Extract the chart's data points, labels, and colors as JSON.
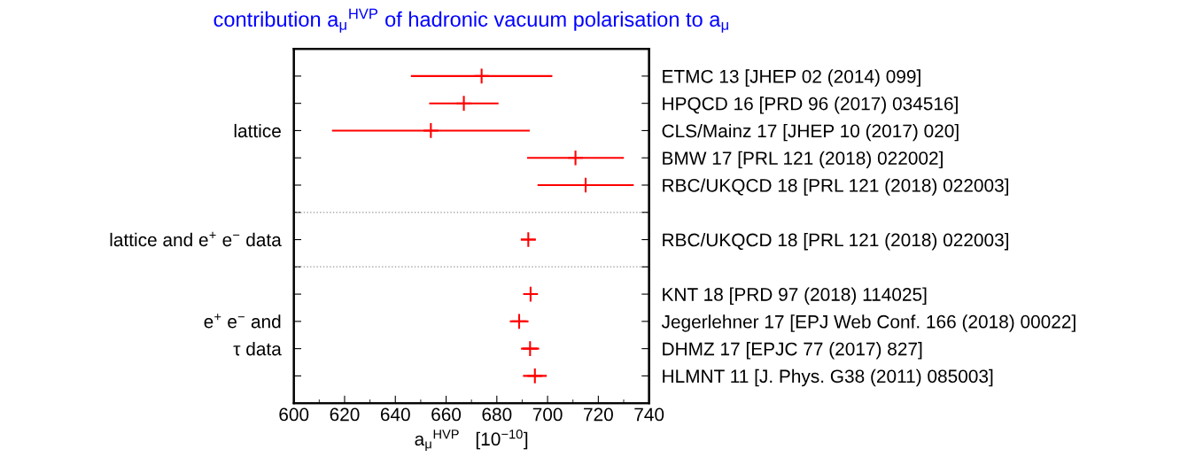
{
  "chart_data": {
    "type": "scatter",
    "orientation": "horizontal",
    "title": "contribution a$_{μ}$$^{HVP}$ of hadronic vacuum polarisation to a$_{μ}$",
    "xlabel": "a$_{μ}$$^{HVP}$   [10$^{−10}$]",
    "categories": [
      null,
      null,
      "lattice",
      null,
      null,
      null,
      "lattice and e$^{+}$ e$^{−}$ data",
      null,
      null,
      "e$^{+}$ e$^{−}$ and",
      "τ data",
      null
    ],
    "y2_categories": [
      "ETMC 13 [JHEP 02 (2014) 099]",
      "HPQCD 16 [PRD 96 (2017) 034516]",
      "CLS/Mainz 17 [JHEP 10 (2017) 020]",
      "BMW 17 [PRL 121 (2018) 022002]",
      "RBC/UKQCD 18 [PRL 121 (2018) 022003]",
      null,
      "RBC/UKQCD 18 [PRL 121 (2018) 022003]",
      null,
      "KNT 18 [PRD 97 (2018) 114025]",
      "Jegerlehner 17 [EPJ Web Conf. 166 (2018) 00022]",
      "DHMZ 17 [EPJC 77 (2017) 827]",
      "HLMNT 11 [J. Phys. G38 (2011) 085003]"
    ],
    "series": [
      {
        "color": "#ff0000",
        "values": [
          674,
          667,
          654,
          711,
          715,
          null,
          692.4,
          null,
          693.3,
          688.8,
          693.1,
          695
        ],
        "errors": [
          27.5,
          13.3,
          38.6,
          18.7,
          18.6,
          null,
          2.6,
          null,
          2.3,
          3.3,
          3.2,
          4.3
        ]
      }
    ],
    "marker": "cross",
    "xlim": [
      600,
      740
    ],
    "xticks": [
      600,
      620,
      640,
      660,
      680,
      700,
      720,
      740
    ],
    "grid": false,
    "legend": false
  }
}
